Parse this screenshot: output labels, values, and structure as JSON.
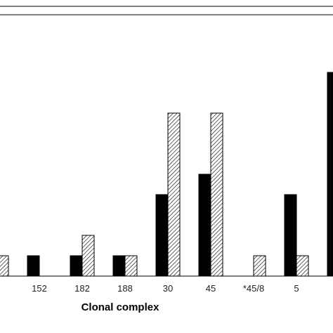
{
  "chart_data": {
    "type": "bar",
    "title": "",
    "xlabel": "Clonal complex",
    "ylabel": "",
    "categories": [
      "",
      "152",
      "182",
      "188",
      "30",
      "45",
      "*45/8",
      "5",
      ""
    ],
    "series": [
      {
        "values": [
          null,
          1,
          1,
          1,
          4,
          5,
          0,
          4,
          10
        ],
        "fill": "#000000",
        "pattern": "solid"
      },
      {
        "values": [
          1,
          0,
          2,
          1,
          8,
          8,
          1,
          1,
          null
        ],
        "fill": "#ffffff",
        "pattern": "diagonal-hatch"
      }
    ],
    "ylim": [
      0,
      11
    ],
    "grid": false,
    "legend": "none"
  }
}
